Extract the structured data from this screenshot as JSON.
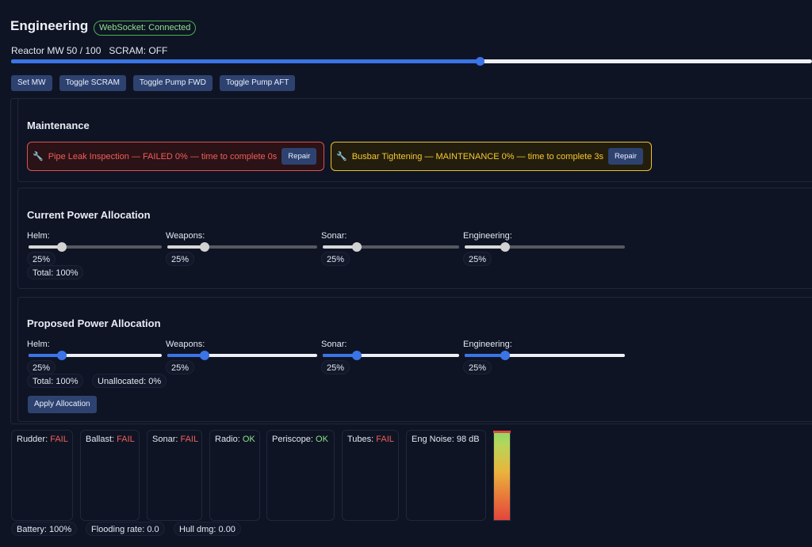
{
  "header": {
    "title": "Engineering",
    "websocket_status": "WebSocket: Connected"
  },
  "reactor": {
    "label": "Reactor MW 50 / 100",
    "scram": "SCRAM: OFF",
    "mw": 50,
    "max_mw": 100
  },
  "toolbar": {
    "set_mw": "Set MW",
    "toggle_scram": "Toggle SCRAM",
    "toggle_pump_fwd": "Toggle Pump FWD",
    "toggle_pump_aft": "Toggle Pump AFT"
  },
  "maintenance": {
    "title": "Maintenance",
    "items": [
      {
        "icon": "🔧",
        "text": "Pipe Leak Inspection — FAILED 0% — time to complete 0s",
        "button": "Repair",
        "status": "failed"
      },
      {
        "icon": "🔧",
        "text": "Busbar Tightening — MAINTENANCE 0% — time to complete 3s",
        "button": "Repair",
        "status": "maintenance"
      }
    ]
  },
  "current_allocation": {
    "title": "Current Power Allocation",
    "systems": [
      {
        "label": "Helm:",
        "value": "25%",
        "level": 0.25
      },
      {
        "label": "Weapons:",
        "value": "25%",
        "level": 0.25
      },
      {
        "label": "Sonar:",
        "value": "25%",
        "level": 0.25
      },
      {
        "label": "Engineering:",
        "value": "25%",
        "level": 0.25
      }
    ],
    "total": "Total: 100%"
  },
  "proposed_allocation": {
    "title": "Proposed Power Allocation",
    "systems": [
      {
        "label": "Helm:",
        "value": "25%",
        "level": 0.25
      },
      {
        "label": "Weapons:",
        "value": "25%",
        "level": 0.25
      },
      {
        "label": "Sonar:",
        "value": "25%",
        "level": 0.25
      },
      {
        "label": "Engineering:",
        "value": "25%",
        "level": 0.25
      }
    ],
    "total": "Total: 100%",
    "unallocated": "Unallocated: 0%",
    "apply_button": "Apply Allocation"
  },
  "status_cards": [
    {
      "label": "Rudder:",
      "value": "FAIL",
      "state": "fail"
    },
    {
      "label": "Ballast:",
      "value": "FAIL",
      "state": "fail"
    },
    {
      "label": "Sonar:",
      "value": "FAIL",
      "state": "fail"
    },
    {
      "label": "Radio:",
      "value": "OK",
      "state": "ok"
    },
    {
      "label": "Periscope:",
      "value": "OK",
      "state": "ok"
    },
    {
      "label": "Tubes:",
      "value": "FAIL",
      "state": "fail"
    }
  ],
  "noise": {
    "label": "Eng Noise: 98 dB",
    "level": 0.98
  },
  "footer": {
    "battery": "Battery: 100%",
    "flooding": "Flooding rate: 0.0",
    "hull": "Hull dmg: 0.00"
  },
  "colors": {
    "accent": "#3b74e6",
    "fail": "#ef5f5a",
    "ok": "#8ee28b",
    "warn": "#f5c932"
  }
}
